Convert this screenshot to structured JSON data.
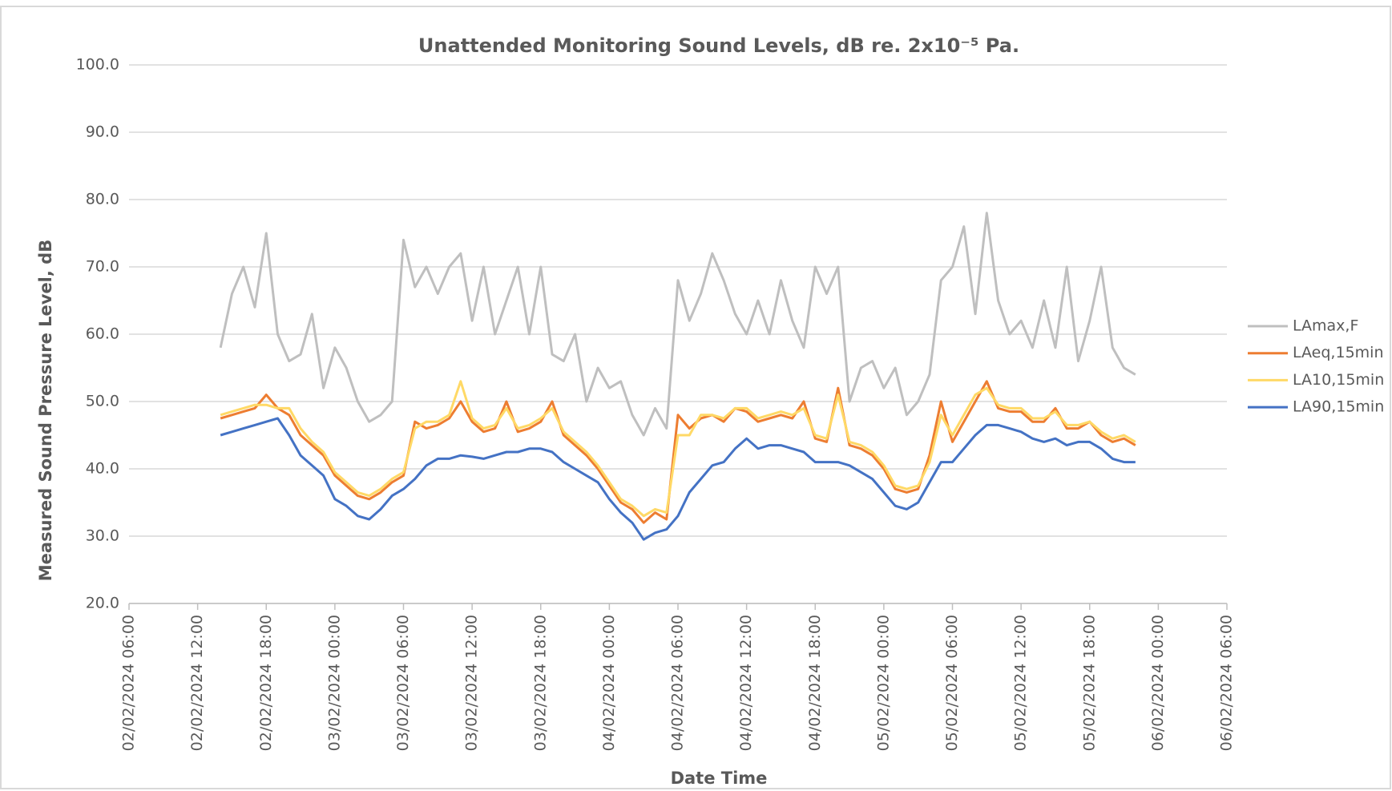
{
  "chart_data": {
    "type": "line",
    "title": "Unattended Monitoring Sound Levels, dB re. 2x10⁻⁵ Pa.",
    "x_label": "Date Time",
    "y_label": "Measured Sound Pressure Level, dB",
    "x": [
      "02/02/2024 14:00",
      "02/02/2024 15:00",
      "02/02/2024 16:00",
      "02/02/2024 17:00",
      "02/02/2024 18:00",
      "02/02/2024 19:00",
      "02/02/2024 20:00",
      "02/02/2024 21:00",
      "02/02/2024 22:00",
      "02/02/2024 23:00",
      "03/02/2024 00:00",
      "03/02/2024 01:00",
      "03/02/2024 02:00",
      "03/02/2024 03:00",
      "03/02/2024 04:00",
      "03/02/2024 05:00",
      "03/02/2024 06:00",
      "03/02/2024 07:00",
      "03/02/2024 08:00",
      "03/02/2024 09:00",
      "03/02/2024 10:00",
      "03/02/2024 11:00",
      "03/02/2024 12:00",
      "03/02/2024 13:00",
      "03/02/2024 14:00",
      "03/02/2024 15:00",
      "03/02/2024 16:00",
      "03/02/2024 17:00",
      "03/02/2024 18:00",
      "03/02/2024 19:00",
      "03/02/2024 20:00",
      "03/02/2024 21:00",
      "03/02/2024 22:00",
      "03/02/2024 23:00",
      "04/02/2024 00:00",
      "04/02/2024 01:00",
      "04/02/2024 02:00",
      "04/02/2024 03:00",
      "04/02/2024 04:00",
      "04/02/2024 05:00",
      "04/02/2024 06:00",
      "04/02/2024 07:00",
      "04/02/2024 08:00",
      "04/02/2024 09:00",
      "04/02/2024 10:00",
      "04/02/2024 11:00",
      "04/02/2024 12:00",
      "04/02/2024 13:00",
      "04/02/2024 14:00",
      "04/02/2024 15:00",
      "04/02/2024 16:00",
      "04/02/2024 17:00",
      "04/02/2024 18:00",
      "04/02/2024 19:00",
      "04/02/2024 20:00",
      "04/02/2024 21:00",
      "04/02/2024 22:00",
      "04/02/2024 23:00",
      "05/02/2024 00:00",
      "05/02/2024 01:00",
      "05/02/2024 02:00",
      "05/02/2024 03:00",
      "05/02/2024 04:00",
      "05/02/2024 05:00",
      "05/02/2024 06:00",
      "05/02/2024 07:00",
      "05/02/2024 08:00",
      "05/02/2024 09:00",
      "05/02/2024 10:00",
      "05/02/2024 11:00",
      "05/02/2024 12:00",
      "05/02/2024 13:00",
      "05/02/2024 14:00",
      "05/02/2024 15:00",
      "05/02/2024 16:00",
      "05/02/2024 17:00",
      "05/02/2024 18:00",
      "05/02/2024 19:00",
      "05/02/2024 20:00",
      "05/02/2024 21:00",
      "05/02/2024 22:00"
    ],
    "series": [
      {
        "name": "LAmax,F",
        "color": "#bfbfbf",
        "values": [
          58,
          66,
          70,
          64,
          75,
          60,
          56,
          57,
          63,
          52,
          58,
          55,
          50,
          47,
          48,
          50,
          74,
          67,
          70,
          66,
          70,
          72,
          62,
          70,
          60,
          65,
          70,
          60,
          70,
          57,
          56,
          60,
          50,
          55,
          52,
          53,
          48,
          45,
          49,
          46,
          68,
          62,
          66,
          72,
          68,
          63,
          60,
          65,
          60,
          68,
          62,
          58,
          70,
          66,
          70,
          50,
          55,
          56,
          52,
          55,
          48,
          50,
          54,
          68,
          70,
          76,
          63,
          78,
          65,
          60,
          62,
          58,
          65,
          58,
          70,
          56,
          62,
          70,
          58,
          55,
          54
        ]
      },
      {
        "name": "LAeq,15min",
        "color": "#ed7d31",
        "values": [
          47.5,
          48,
          48.5,
          49,
          51,
          49,
          48,
          45,
          43.5,
          42,
          39,
          37.5,
          36,
          35.5,
          36.5,
          38,
          39,
          47,
          46,
          46.5,
          47.5,
          50,
          47,
          45.5,
          46,
          50,
          45.5,
          46,
          47,
          50,
          45,
          43.5,
          42,
          40,
          37.5,
          35,
          34,
          32,
          33.5,
          32.5,
          48,
          46,
          47.5,
          48,
          47,
          49,
          48.5,
          47,
          47.5,
          48,
          47.5,
          50,
          44.5,
          44,
          52,
          43.5,
          43,
          42,
          40,
          37,
          36.5,
          37,
          42,
          50,
          44,
          47,
          50,
          53,
          49,
          48.5,
          48.5,
          47,
          47,
          49,
          46,
          46,
          47,
          45,
          44,
          44.5,
          43.5
        ]
      },
      {
        "name": "LA10,15min",
        "color": "#ffd966",
        "values": [
          48,
          48.5,
          49,
          49.5,
          49.5,
          49,
          49,
          46,
          44,
          42.5,
          39.5,
          38,
          36.5,
          36,
          37,
          38.5,
          39.5,
          46,
          47,
          47,
          48,
          53,
          47.5,
          46,
          46.5,
          49,
          46,
          46.5,
          47.5,
          49,
          45.5,
          44,
          42.5,
          40.5,
          38,
          35.5,
          34.5,
          33,
          34,
          33.5,
          45,
          45,
          48,
          48,
          47.5,
          49,
          49,
          47.5,
          48,
          48.5,
          48,
          49,
          45,
          44.5,
          51,
          44,
          43.5,
          42.5,
          40.5,
          37.5,
          37,
          37.5,
          41,
          48,
          45,
          48,
          51,
          52,
          49.5,
          49,
          49,
          47.5,
          47.5,
          48.5,
          46.5,
          46.5,
          47,
          45.5,
          44.5,
          45,
          44
        ]
      },
      {
        "name": "LA90,15min",
        "color": "#4472c4",
        "values": [
          45,
          45.5,
          46,
          46.5,
          47,
          47.5,
          45,
          42,
          40.5,
          39,
          35.5,
          34.5,
          33,
          32.5,
          34,
          36,
          37,
          38.5,
          40.5,
          41.5,
          41.5,
          42,
          41.8,
          41.5,
          42,
          42.5,
          42.5,
          43,
          43,
          42.5,
          41,
          40,
          39,
          38,
          35.5,
          33.5,
          32,
          29.5,
          30.5,
          31,
          33,
          36.5,
          38.5,
          40.5,
          41,
          43,
          44.5,
          43,
          43.5,
          43.5,
          43,
          42.5,
          41,
          41,
          41,
          40.5,
          39.5,
          38.5,
          36.5,
          34.5,
          34,
          35,
          38,
          41,
          41,
          43,
          45,
          46.5,
          46.5,
          46,
          45.5,
          44.5,
          44,
          44.5,
          43.5,
          44,
          44,
          43,
          41.5,
          41,
          41
        ]
      }
    ],
    "xlim": [
      "02/02/2024 06:00",
      "06/02/2024 06:00"
    ],
    "xticks": [
      "02/02/2024 06:00",
      "02/02/2024 12:00",
      "02/02/2024 18:00",
      "03/02/2024 00:00",
      "03/02/2024 06:00",
      "03/02/2024 12:00",
      "03/02/2024 18:00",
      "04/02/2024 00:00",
      "04/02/2024 06:00",
      "04/02/2024 12:00",
      "04/02/2024 18:00",
      "05/02/2024 00:00",
      "05/02/2024 06:00",
      "05/02/2024 12:00",
      "05/02/2024 18:00",
      "06/02/2024 00:00",
      "06/02/2024 06:00"
    ],
    "ylim": [
      20,
      100
    ],
    "yticks": [
      {
        "value": 20,
        "label": "20.0"
      },
      {
        "value": 30,
        "label": "30.0"
      },
      {
        "value": 40,
        "label": "40.0"
      },
      {
        "value": 50,
        "label": "50.0"
      },
      {
        "value": 60,
        "label": "60.0"
      },
      {
        "value": 70,
        "label": "70.0"
      },
      {
        "value": 80,
        "label": "80.0"
      },
      {
        "value": 90,
        "label": "90.0"
      },
      {
        "value": 100,
        "label": "100.0"
      }
    ],
    "grid": true,
    "legend": "right"
  }
}
